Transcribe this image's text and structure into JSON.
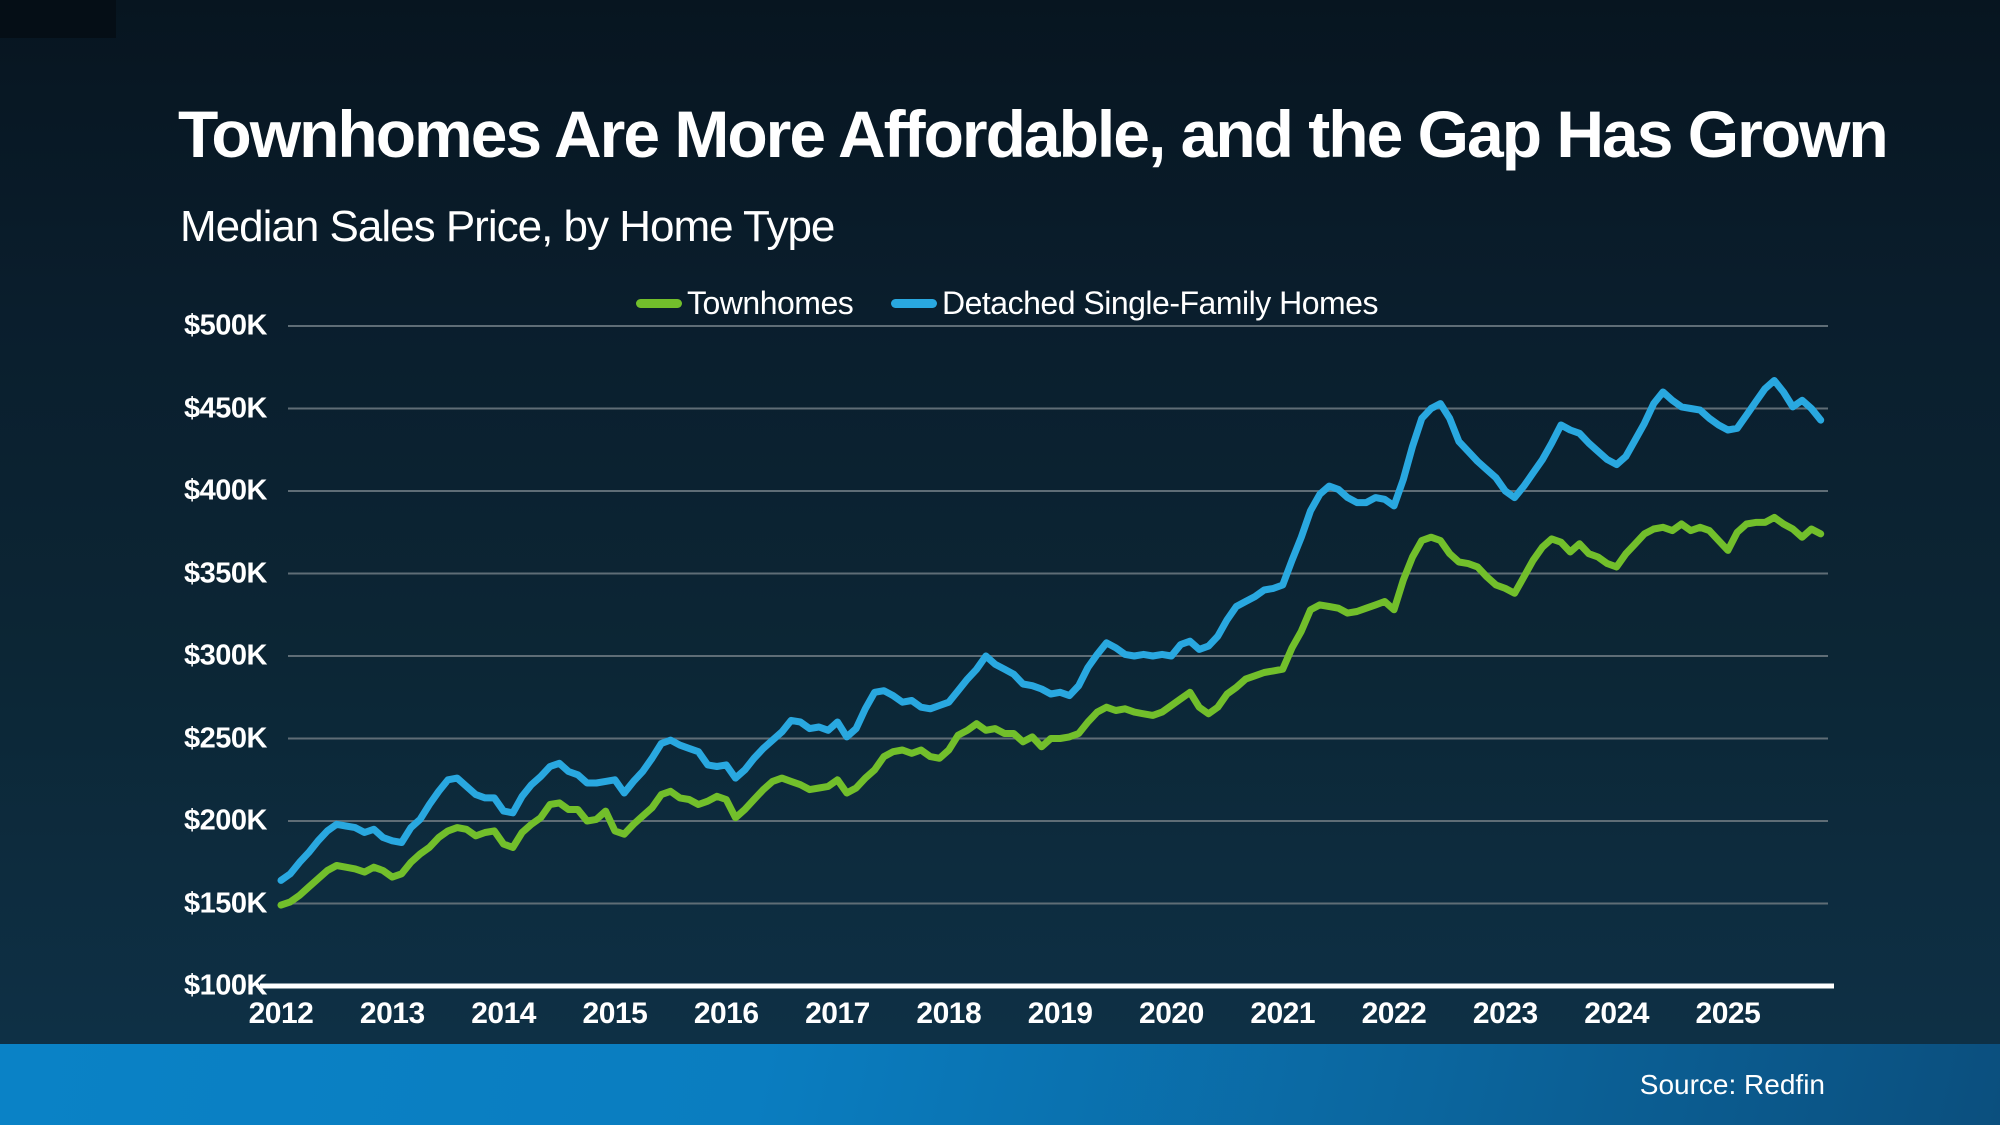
{
  "header": {
    "title": "Townhomes Are More Affordable, and the Gap Has Grown",
    "subtitle": "Median Sales Price, by Home Type"
  },
  "legend": [
    {
      "label": "Townhomes",
      "color": "#72bf2b"
    },
    {
      "label": "Detached Single-Family Homes",
      "color": "#29a8e0"
    }
  ],
  "source": {
    "label": "Source: Redfin"
  },
  "colors": {
    "townhomes_line": "#72bf2b",
    "detached_line": "#29a8e0",
    "gridline": "#5f6d76",
    "axis_line": "#ffffff",
    "text": "#ffffff",
    "bottom_bar_left": "#0a82c6",
    "bottom_bar_right": "#0b4f7e"
  },
  "chart_data": {
    "type": "line",
    "title": "Townhomes Are More Affordable, and the Gap Has Grown",
    "subtitle": "Median Sales Price, by Home Type",
    "x_interval": "monthly",
    "x_start": "2012-01",
    "x_end": "2025-11",
    "x_tick_labels": [
      "2012",
      "2013",
      "2014",
      "2015",
      "2016",
      "2017",
      "2018",
      "2019",
      "2020",
      "2021",
      "2022",
      "2023",
      "2024",
      "2025"
    ],
    "y_tick_labels": [
      "$100K",
      "$150K",
      "$200K",
      "$250K",
      "$300K",
      "$350K",
      "$400K",
      "$450K",
      "$500K"
    ],
    "y_tick_values": [
      100,
      150,
      200,
      250,
      300,
      350,
      400,
      450,
      500
    ],
    "ylim": [
      100,
      500
    ],
    "y_unit": "USD thousands",
    "grid": true,
    "legend_position": "top-center",
    "series": [
      {
        "name": "Townhomes",
        "color": "#72bf2b",
        "values": [
          149,
          151,
          155,
          160,
          165,
          170,
          173,
          172,
          171,
          169,
          172,
          170,
          166,
          168,
          175,
          180,
          184,
          190,
          194,
          196,
          195,
          191,
          193,
          194,
          186,
          184,
          193,
          198,
          202,
          210,
          211,
          207,
          207,
          200,
          201,
          206,
          194,
          192,
          198,
          203,
          208,
          216,
          218,
          214,
          213,
          210,
          212,
          215,
          213,
          202,
          207,
          213,
          219,
          224,
          226,
          224,
          222,
          219,
          220,
          221,
          225,
          217,
          220,
          226,
          231,
          239,
          242,
          243,
          241,
          243,
          239,
          238,
          243,
          252,
          255,
          259,
          255,
          256,
          253,
          253,
          248,
          251,
          245,
          250,
          250,
          251,
          253,
          260,
          266,
          269,
          267,
          268,
          266,
          265,
          264,
          266,
          270,
          274,
          278,
          269,
          265,
          269,
          277,
          281,
          286,
          288,
          290,
          291,
          292,
          305,
          315,
          328,
          331,
          330,
          329,
          326,
          327,
          329,
          331,
          333,
          328,
          346,
          360,
          370,
          372,
          370,
          362,
          357,
          356,
          354,
          348,
          343,
          341,
          338,
          348,
          358,
          366,
          371,
          369,
          363,
          368,
          362,
          360,
          356,
          354,
          362,
          368,
          374,
          377,
          378,
          376,
          380,
          376,
          378,
          376,
          370,
          364,
          375,
          380,
          381,
          381,
          384,
          380,
          377,
          372,
          377,
          374
        ]
      },
      {
        "name": "Detached Single-Family Homes",
        "color": "#29a8e0",
        "values": [
          164,
          168,
          175,
          181,
          188,
          194,
          198,
          197,
          196,
          193,
          195,
          190,
          188,
          187,
          196,
          201,
          210,
          218,
          225,
          226,
          221,
          216,
          214,
          214,
          206,
          205,
          215,
          222,
          227,
          233,
          235,
          230,
          228,
          223,
          223,
          224,
          225,
          217,
          224,
          230,
          238,
          247,
          249,
          246,
          244,
          242,
          234,
          233,
          234,
          226,
          231,
          238,
          244,
          249,
          254,
          261,
          260,
          256,
          257,
          255,
          260,
          251,
          256,
          268,
          278,
          279,
          276,
          272,
          273,
          269,
          268,
          270,
          272,
          279,
          286,
          292,
          300,
          295,
          292,
          289,
          283,
          282,
          280,
          277,
          278,
          276,
          282,
          293,
          301,
          308,
          305,
          301,
          300,
          301,
          300,
          301,
          300,
          307,
          309,
          304,
          306,
          312,
          322,
          330,
          333,
          336,
          340,
          341,
          343,
          358,
          372,
          388,
          398,
          403,
          401,
          396,
          393,
          393,
          396,
          395,
          391,
          407,
          427,
          444,
          450,
          453,
          444,
          430,
          424,
          418,
          413,
          408,
          400,
          396,
          403,
          411,
          419,
          429,
          440,
          437,
          435,
          429,
          424,
          419,
          416,
          421,
          431,
          441,
          453,
          460,
          455,
          451,
          450,
          449,
          444,
          440,
          437,
          438,
          446,
          454,
          462,
          467,
          460,
          451,
          455,
          450,
          443
        ]
      }
    ]
  }
}
